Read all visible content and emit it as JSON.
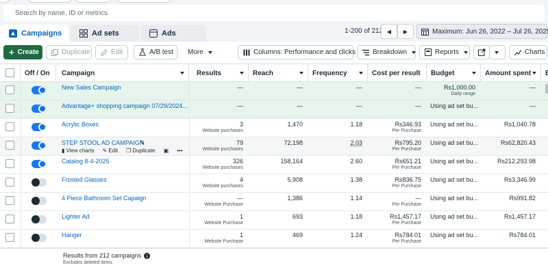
{
  "search": {
    "placeholder": "Search by name, ID or metrics"
  },
  "tabs": [
    {
      "label": "Campaigns",
      "icon": "campaign-icon",
      "active": true
    },
    {
      "label": "Ad sets",
      "icon": "adsets-icon",
      "active": false
    },
    {
      "label": "Ads",
      "icon": "ads-icon",
      "active": false
    }
  ],
  "pagination": {
    "range": "1-200 of 212"
  },
  "date_range": {
    "label": "Maximum: Jun 26, 2022 – Jul 26, 2025"
  },
  "toolbar": {
    "create": "Create",
    "duplicate": "Duplicate",
    "edit": "Edit",
    "ab_test": "A/B test",
    "more": "More",
    "columns": "Columns: Performance and clicks",
    "breakdown": "Breakdown",
    "reports": "Reports",
    "charts": "Charts"
  },
  "columns": {
    "off_on": "Off / On",
    "campaign": "Campaign",
    "results": "Results",
    "reach": "Reach",
    "frequency": "Frequency",
    "cost_per_result": "Cost per result",
    "budget": "Budget",
    "amount_spent": "Amount spent",
    "overflow": "E"
  },
  "hover_actions": {
    "view_charts": "View charts",
    "edit": "Edit",
    "duplicate": "Duplicate",
    "more": "•••"
  },
  "rows": [
    {
      "name": "New Sales Campaign",
      "on": true,
      "selected": true,
      "results": "—",
      "results_sub": "",
      "reach": "—",
      "frequency": "—",
      "cost": "—",
      "cost_sub": "",
      "budget": "Rs1,000.00",
      "budget_sub": "Daily range",
      "spent": "—"
    },
    {
      "name": "Advantage+ shopping campaign 07/29/2024...",
      "on": true,
      "selected": true,
      "results": "—",
      "results_sub": "",
      "reach": "—",
      "frequency": "—",
      "cost": "—",
      "cost_sub": "",
      "budget": "Using ad set bu...",
      "budget_sub": "",
      "spent": "—"
    },
    {
      "name": "Acrylic Boxes",
      "on": true,
      "selected": false,
      "results": "3",
      "results_sub": "Website purchases",
      "reach": "1,470",
      "frequency": "1.18",
      "cost": "Rs346.93",
      "cost_sub": "Per Purchase",
      "budget": "Using ad set bu...",
      "budget_sub": "",
      "spent": "Rs1,040.78"
    },
    {
      "name": "STEP STOOL AD CAMPAIGN",
      "on": true,
      "selected": false,
      "hover": true,
      "results": "79",
      "results_sub": "Website purchases",
      "reach": "72,198",
      "frequency": "2.03",
      "cost": "Rs795.20",
      "cost_sub": "Per Purchase",
      "budget": "Using ad set bu...",
      "budget_sub": "",
      "spent": "Rs62,820.43"
    },
    {
      "name": "Catalog 8-4-2025",
      "on": true,
      "selected": false,
      "results": "326",
      "results_sub": "Website purchases",
      "reach": "158,164",
      "frequency": "2.60",
      "cost": "Rs651.21",
      "cost_sub": "Per Purchase",
      "budget": "Using ad set bu...",
      "budget_sub": "",
      "spent": "Rs212,293.98"
    },
    {
      "name": "Frosted Glasses",
      "on": false,
      "selected": false,
      "results": "4",
      "results_sub": "Website purchases",
      "reach": "5,908",
      "frequency": "1.38",
      "cost": "Rs836.75",
      "cost_sub": "Per Purchase",
      "budget": "Using ad set bu...",
      "budget_sub": "",
      "spent": "Rs3,346.99"
    },
    {
      "name": "4 Piece Bathroom Set Capaign",
      "on": false,
      "selected": false,
      "results": "—",
      "results_sub": "Website Purchase",
      "reach": "1,386",
      "frequency": "1.14",
      "cost": "—",
      "cost_sub": "Per Purchase",
      "budget": "Using ad set bu...",
      "budget_sub": "",
      "spent": "Rs991.82"
    },
    {
      "name": "Lighter Ad",
      "on": false,
      "selected": false,
      "results": "1",
      "results_sub": "Website Purchase",
      "reach": "693",
      "frequency": "1.18",
      "cost": "Rs1,457.17",
      "cost_sub": "Per Purchase",
      "budget": "Using ad set bu...",
      "budget_sub": "",
      "spent": "Rs1,457.17"
    },
    {
      "name": "Hanger",
      "on": false,
      "selected": false,
      "results": "1",
      "results_sub": "Website Purchase",
      "reach": "469",
      "frequency": "1.24",
      "cost": "Rs784.01",
      "cost_sub": "Per Purchase",
      "budget": "Using ad set bu...",
      "budget_sub": "",
      "spent": "Rs784.01"
    }
  ],
  "footer": {
    "title": "Results from 212 campaigns",
    "sub": "Excludes deleted items"
  },
  "colors": {
    "accent": "#1877f2",
    "create": "#1f6b43",
    "link": "#0a64bc",
    "selected_row": "#e6f4ec"
  }
}
